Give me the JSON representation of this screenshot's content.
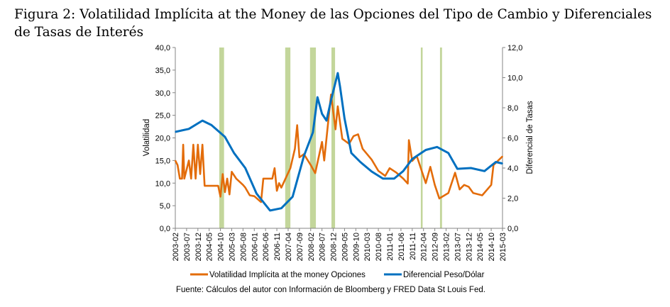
{
  "figure": {
    "title": "Figura 2: Volatilidad Implícita at the Money de las Opciones del Tipo de Cambio y Diferenciales de Tasas de Interés",
    "source": "Fuente:  Cálculos del autor con Información de Bloomberg y FRED Data St Louis Fed."
  },
  "chart_data": {
    "type": "line",
    "title": "Volatilidad Implícita at the Money de las Opciones del Tipo de Cambio y Diferenciales de Tasas de Interés",
    "xlabel": "",
    "ylabel": "Volatilidad",
    "y2label": "Diferencial de Tasas",
    "ylim": [
      0,
      40
    ],
    "y2lim": [
      0,
      12
    ],
    "yticks": [
      "0,0",
      "5,0",
      "10,0",
      "15,0",
      "20,0",
      "25,0",
      "30,0",
      "35,0",
      "40,0"
    ],
    "y2ticks": [
      "0,0",
      "2,0",
      "4,0",
      "6,0",
      "8,0",
      "10,0",
      "12,0"
    ],
    "x_unit": "months since 2003-02",
    "xlim": [
      0,
      145
    ],
    "xtick_labels": [
      "2003-02",
      "2003-07",
      "2003-12",
      "2004-05",
      "2004-10",
      "2005-03",
      "2005-08",
      "2006-01",
      "2006-06",
      "2006-11",
      "2007-04",
      "2007-09",
      "2008-02",
      "2008-07",
      "2008-12",
      "2009-05",
      "2009-10",
      "2010-03",
      "2010-08",
      "2011-01",
      "2011-06",
      "2011-11",
      "2012-04",
      "2012-09",
      "2013-02",
      "2013-07",
      "2013-12",
      "2014-05",
      "2014-10",
      "2015-03"
    ],
    "grid": false,
    "legend_position": "bottom",
    "series": [
      {
        "name": "Volatilidad Implícita at the money Opciones",
        "axis": "left",
        "color": "#E36C0A",
        "x": [
          0,
          1,
          2,
          3,
          3.5,
          4,
          6,
          7,
          8,
          9,
          10,
          11,
          12,
          13,
          19,
          20,
          21,
          22,
          23,
          24,
          25,
          27,
          30,
          31,
          33,
          35,
          38,
          39,
          43,
          44,
          45,
          46,
          47,
          51,
          53,
          54,
          55,
          57,
          60,
          62,
          65,
          66,
          69,
          71,
          72,
          74,
          77,
          79,
          81,
          83,
          87,
          90,
          93,
          95,
          98,
          101,
          103,
          103.5,
          105,
          107,
          111,
          113,
          115,
          117,
          121,
          124,
          126,
          128,
          130,
          132,
          136,
          140,
          141,
          145
        ],
        "y": [
          15,
          14,
          11,
          11,
          18.5,
          11,
          15,
          11,
          18.5,
          11,
          18.5,
          12,
          18.5,
          9.4,
          9.4,
          7,
          12,
          8,
          11,
          7.5,
          12.5,
          11,
          9.6,
          9,
          7.3,
          7.1,
          5.8,
          11,
          11,
          13.3,
          8.3,
          10,
          9,
          13.3,
          17.6,
          22.8,
          15.7,
          16.4,
          14,
          12.2,
          19.1,
          15,
          29.6,
          21.9,
          27,
          19.8,
          18.7,
          20.4,
          20.8,
          17.6,
          15.2,
          12.7,
          11.6,
          13.3,
          12.3,
          11,
          9.9,
          19.5,
          14.9,
          16,
          10,
          13.6,
          9.6,
          6.6,
          7.8,
          12.3,
          8.6,
          9.6,
          9.2,
          7.8,
          7.3,
          9.6,
          14,
          15.9
        ]
      },
      {
        "name": "Diferencial Peso/Dólar",
        "axis": "right",
        "color": "#0070C0",
        "x": [
          0,
          6,
          12,
          16,
          22,
          26,
          31,
          36,
          42,
          47,
          52,
          57,
          61,
          63,
          65,
          67,
          69,
          72,
          73,
          75,
          78,
          82,
          87,
          92,
          97,
          101,
          105,
          111,
          116,
          121,
          125,
          131,
          137,
          142,
          145
        ],
        "y": [
          6.4,
          6.6,
          7.15,
          6.85,
          6.07,
          5.0,
          4.0,
          2.3,
          1.18,
          1.33,
          2.1,
          4.8,
          6.37,
          8.7,
          7.6,
          7.15,
          8.5,
          10.3,
          9.4,
          7.3,
          5.0,
          4.4,
          3.77,
          3.3,
          3.3,
          3.8,
          4.6,
          5.2,
          5.4,
          5.0,
          3.95,
          4.0,
          3.8,
          4.4,
          4.3
        ]
      }
    ],
    "shaded_periods": {
      "color": "#C3D69B",
      "ranges": [
        [
          19.5,
          21.6
        ],
        [
          48.7,
          51
        ],
        [
          59.7,
          62.3
        ],
        [
          69.2,
          70.8
        ],
        [
          108.8,
          109.6
        ],
        [
          117.3,
          118.2
        ]
      ]
    }
  }
}
